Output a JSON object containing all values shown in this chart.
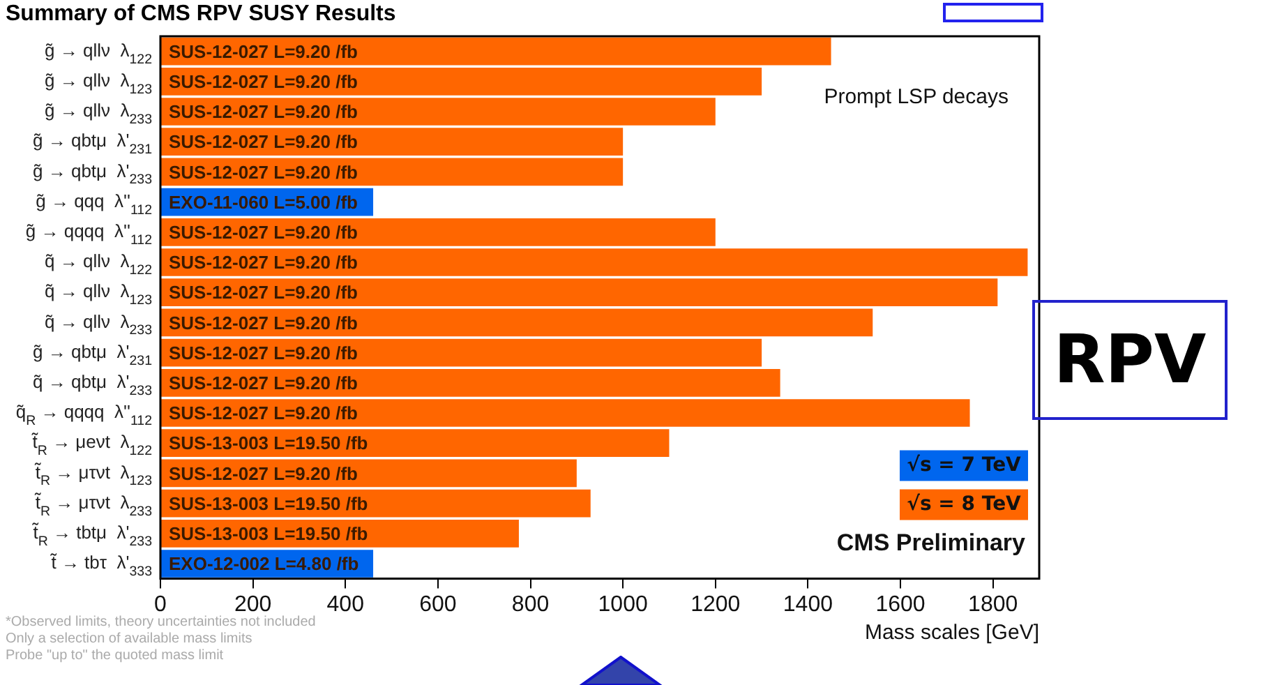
{
  "chart_data": {
    "type": "bar",
    "orientation": "horizontal",
    "stacked": true,
    "title": "Summary of CMS RPV SUSY Results",
    "categories": [
      "g̃ → qllν  λ$_{122}$",
      "g̃ → qllν  λ$_{123}$",
      "g̃ → qllν  λ$_{233}$",
      "g̃ → qbtμ  λ'$_{231}$",
      "g̃ → qbtμ  λ'$_{233}$",
      "g̃ → qqq  λ''$_{112}$",
      "g̃ → qqqq  λ''$_{112}$",
      "q̃ → qllν  λ$_{122}$",
      "q̃ → qllν  λ$_{123}$",
      "q̃ → qllν  λ$_{233}$",
      "g̃ → qbtμ  λ'$_{231}$",
      "q̃ → qbtμ  λ'$_{233}$",
      "q̃$_{R}$ → qqqq  λ''$_{112}$",
      "t̃$_{R}$ → μeνt  λ$_{122}$",
      "t̃$_{R}$ → μτνt  λ$_{123}$",
      "t̃$_{R}$ → μτνt  λ$_{233}$",
      "t̃$_{R}$ → tbtμ  λ'$_{233}$",
      "t̃ → tbτ  λ'$_{333}$"
    ],
    "series": [
      {
        "name": "√s = 7 TeV",
        "color": "#0066ee",
        "values": [
          null,
          null,
          null,
          null,
          null,
          460,
          null,
          null,
          null,
          null,
          null,
          null,
          null,
          null,
          null,
          null,
          null,
          460
        ]
      },
      {
        "name": "√s = 8 TeV",
        "color": "#ff6600",
        "values": [
          1450,
          1300,
          1200,
          1000,
          1000,
          null,
          1200,
          1875,
          1810,
          1540,
          1300,
          1340,
          1750,
          1100,
          900,
          930,
          775,
          null
        ]
      }
    ],
    "value_labels": [
      "SUS-12-027 L=9.20 /fb",
      "SUS-12-027 L=9.20 /fb",
      "SUS-12-027 L=9.20 /fb",
      "SUS-12-027 L=9.20 /fb",
      "SUS-12-027 L=9.20 /fb",
      "EXO-11-060 L=5.00 /fb",
      "SUS-12-027 L=9.20 /fb",
      "SUS-12-027 L=9.20 /fb",
      "SUS-12-027 L=9.20 /fb",
      "SUS-12-027 L=9.20 /fb",
      "SUS-12-027 L=9.20 /fb",
      "SUS-12-027 L=9.20 /fb",
      "SUS-12-027 L=9.20 /fb",
      "SUS-13-003 L=19.50 /fb",
      "SUS-12-027 L=9.20 /fb",
      "SUS-13-003 L=19.50 /fb",
      "SUS-13-003 L=19.50 /fb",
      "EXO-12-002 L=4.80 /fb"
    ],
    "xlabel": "Mass scales [GeV]",
    "xlim": [
      0,
      1900
    ],
    "xticks": [
      0,
      200,
      400,
      600,
      800,
      1000,
      1200,
      1400,
      1600,
      1800
    ],
    "legend": "bottom right",
    "grid": false,
    "annotations": [
      "Prompt LSP decays",
      "CMS Preliminary",
      "RPV",
      "*Observed limits, theory uncertainties not included",
      "Only a selection of available mass limits",
      "Probe \"up to\" the quoted mass limit"
    ]
  }
}
